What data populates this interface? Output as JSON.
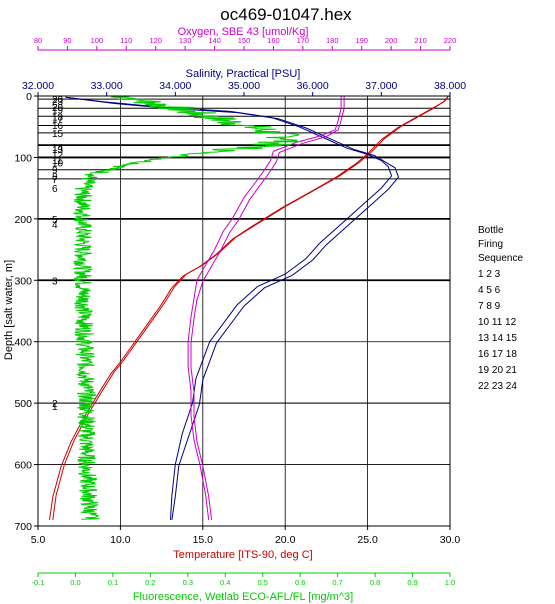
{
  "chart_data": {
    "type": "line",
    "title": "oc469-01047.hex",
    "y_axis": {
      "label": "Depth [salt water, m]",
      "range": [
        0,
        700
      ],
      "ticks": [
        0,
        100,
        200,
        300,
        400,
        500,
        600,
        700
      ],
      "inverted": true
    },
    "x_axes": {
      "oxygen": {
        "label": "Oxygen, SBE 43 [umol/Kg]",
        "range": [
          80,
          220
        ],
        "ticks": [
          80,
          90,
          100,
          110,
          120,
          130,
          140,
          150,
          160,
          170,
          180,
          190,
          200,
          210,
          220
        ],
        "color": "#cc00cc"
      },
      "salinity": {
        "label": "Salinity, Practical [PSU]",
        "range": [
          32,
          38
        ],
        "ticks": [
          "32.000",
          "33.000",
          "34.000",
          "35.000",
          "36.000",
          "37.000",
          "38.000"
        ],
        "color": "#000080"
      },
      "temperature": {
        "label": "Temperature [ITS-90, deg C]",
        "range": [
          5,
          30
        ],
        "ticks": [
          "5.0",
          "10.0",
          "15.0",
          "20.0",
          "25.0",
          "30.0"
        ],
        "color": "#cc0000"
      },
      "fluorescence": {
        "label": "Fluorescence, Wetlab ECO-AFL/FL [mg/m^3]",
        "range": [
          -0.1,
          1.0
        ],
        "ticks": [
          "-0.1",
          "0.0",
          "0.1",
          "0.2",
          "0.3",
          "0.4",
          "0.5",
          "0.6",
          "0.7",
          "0.8",
          "0.9",
          "1.0"
        ],
        "color": "#00cc00"
      }
    },
    "grid": true,
    "series": [
      {
        "key": "temperature",
        "color": "#cc0000",
        "axis": "temperature",
        "points": [
          [
            29.9,
            0
          ],
          [
            29.7,
            8
          ],
          [
            29.0,
            20
          ],
          [
            28.0,
            35
          ],
          [
            27.0,
            50
          ],
          [
            26.0,
            70
          ],
          [
            25.2,
            92
          ],
          [
            24.5,
            108
          ],
          [
            23.3,
            130
          ],
          [
            22.0,
            150
          ],
          [
            20.0,
            180
          ],
          [
            18.2,
            210
          ],
          [
            17.0,
            230
          ],
          [
            16.0,
            255
          ],
          [
            15.0,
            275
          ],
          [
            14.0,
            290
          ],
          [
            13.3,
            310
          ],
          [
            12.6,
            340
          ],
          [
            11.8,
            370
          ],
          [
            11.0,
            400
          ],
          [
            10.2,
            430
          ],
          [
            9.6,
            450
          ],
          [
            8.9,
            480
          ],
          [
            8.0,
            520
          ],
          [
            7.2,
            560
          ],
          [
            6.6,
            600
          ],
          [
            6.1,
            650
          ],
          [
            5.9,
            690
          ]
        ]
      },
      {
        "key": "temperature_up",
        "color": "#cc0000",
        "axis": "temperature",
        "points": [
          [
            29.9,
            0
          ],
          [
            29.6,
            10
          ],
          [
            28.8,
            22
          ],
          [
            27.8,
            37
          ],
          [
            26.8,
            52
          ],
          [
            25.8,
            72
          ],
          [
            25.0,
            94
          ],
          [
            24.3,
            110
          ],
          [
            23.1,
            132
          ],
          [
            21.8,
            152
          ],
          [
            19.8,
            182
          ],
          [
            18.0,
            212
          ],
          [
            16.8,
            233
          ],
          [
            15.8,
            258
          ],
          [
            14.8,
            278
          ],
          [
            13.8,
            293
          ],
          [
            13.1,
            313
          ],
          [
            12.4,
            343
          ],
          [
            11.6,
            373
          ],
          [
            10.8,
            403
          ],
          [
            10.0,
            433
          ],
          [
            9.4,
            453
          ],
          [
            8.7,
            483
          ],
          [
            7.8,
            523
          ],
          [
            7.0,
            563
          ],
          [
            6.4,
            603
          ],
          [
            5.9,
            653
          ],
          [
            5.7,
            690
          ]
        ]
      },
      {
        "key": "salinity",
        "color": "#000080",
        "axis": "salinity",
        "points": [
          [
            32.4,
            2
          ],
          [
            33.0,
            10
          ],
          [
            33.8,
            18
          ],
          [
            34.8,
            25
          ],
          [
            35.4,
            35
          ],
          [
            35.8,
            50
          ],
          [
            36.2,
            70
          ],
          [
            36.5,
            85
          ],
          [
            36.8,
            95
          ],
          [
            37.0,
            105
          ],
          [
            37.1,
            115
          ],
          [
            37.15,
            130
          ],
          [
            37.0,
            150
          ],
          [
            36.8,
            170
          ],
          [
            36.5,
            200
          ],
          [
            36.1,
            240
          ],
          [
            35.9,
            265
          ],
          [
            35.6,
            290
          ],
          [
            35.2,
            310
          ],
          [
            34.9,
            340
          ],
          [
            34.7,
            370
          ],
          [
            34.5,
            400
          ],
          [
            34.4,
            430
          ],
          [
            34.3,
            460
          ],
          [
            34.25,
            500
          ],
          [
            34.1,
            550
          ],
          [
            34.0,
            600
          ],
          [
            33.95,
            650
          ],
          [
            33.93,
            690
          ]
        ]
      },
      {
        "key": "salinity_up",
        "color": "#000080",
        "axis": "salinity",
        "points": [
          [
            32.4,
            2
          ],
          [
            33.1,
            12
          ],
          [
            33.9,
            20
          ],
          [
            34.9,
            27
          ],
          [
            35.5,
            37
          ],
          [
            35.9,
            52
          ],
          [
            36.3,
            72
          ],
          [
            36.6,
            87
          ],
          [
            36.9,
            97
          ],
          [
            37.05,
            107
          ],
          [
            37.2,
            117
          ],
          [
            37.25,
            132
          ],
          [
            37.1,
            152
          ],
          [
            36.9,
            172
          ],
          [
            36.6,
            202
          ],
          [
            36.2,
            242
          ],
          [
            36.0,
            267
          ],
          [
            35.7,
            292
          ],
          [
            35.3,
            312
          ],
          [
            35.0,
            342
          ],
          [
            34.8,
            372
          ],
          [
            34.6,
            402
          ],
          [
            34.5,
            432
          ],
          [
            34.4,
            462
          ],
          [
            34.35,
            502
          ],
          [
            34.2,
            552
          ],
          [
            34.05,
            602
          ],
          [
            34.0,
            652
          ],
          [
            33.95,
            690
          ]
        ]
      },
      {
        "key": "oxygen",
        "color": "#cc00cc",
        "axis": "oxygen",
        "points": [
          [
            183,
            0
          ],
          [
            183,
            20
          ],
          [
            182,
            40
          ],
          [
            181,
            55
          ],
          [
            176,
            65
          ],
          [
            168,
            75
          ],
          [
            160,
            90
          ],
          [
            159,
            105
          ],
          [
            157,
            120
          ],
          [
            154,
            140
          ],
          [
            150,
            165
          ],
          [
            146,
            200
          ],
          [
            143,
            220
          ],
          [
            140,
            250
          ],
          [
            137,
            275
          ],
          [
            134,
            300
          ],
          [
            133,
            330
          ],
          [
            132,
            360
          ],
          [
            131,
            400
          ],
          [
            131,
            440
          ],
          [
            132,
            480
          ],
          [
            132,
            520
          ],
          [
            133,
            560
          ],
          [
            135,
            600
          ],
          [
            137,
            650
          ],
          [
            138,
            690
          ]
        ]
      },
      {
        "key": "oxygen_up",
        "color": "#cc00cc",
        "axis": "oxygen",
        "points": [
          [
            184,
            0
          ],
          [
            184,
            20
          ],
          [
            183,
            40
          ],
          [
            182,
            55
          ],
          [
            178,
            66
          ],
          [
            170,
            77
          ],
          [
            162,
            92
          ],
          [
            161,
            107
          ],
          [
            159,
            122
          ],
          [
            156,
            142
          ],
          [
            152,
            168
          ],
          [
            148,
            203
          ],
          [
            145,
            223
          ],
          [
            142,
            252
          ],
          [
            139,
            277
          ],
          [
            136,
            302
          ],
          [
            134,
            332
          ],
          [
            133,
            362
          ],
          [
            132,
            402
          ],
          [
            132,
            442
          ],
          [
            133,
            482
          ],
          [
            133,
            522
          ],
          [
            134,
            562
          ],
          [
            136,
            602
          ],
          [
            138,
            652
          ],
          [
            139,
            690
          ]
        ]
      },
      {
        "key": "fluorescence",
        "color": "#00cc00",
        "axis": "fluorescence",
        "points": [
          [
            0.13,
            0
          ],
          [
            0.2,
            10
          ],
          [
            0.3,
            25
          ],
          [
            0.4,
            40
          ],
          [
            0.5,
            55
          ],
          [
            0.58,
            70
          ],
          [
            0.5,
            82
          ],
          [
            0.35,
            92
          ],
          [
            0.2,
            105
          ],
          [
            0.1,
            118
          ],
          [
            0.04,
            130
          ],
          [
            0.02,
            150
          ],
          [
            0.02,
            200
          ],
          [
            0.02,
            300
          ],
          [
            0.025,
            400
          ],
          [
            0.03,
            500
          ],
          [
            0.03,
            600
          ],
          [
            0.04,
            690
          ]
        ]
      }
    ],
    "bottles": [
      {
        "label": "20",
        "depth": 5
      },
      {
        "label": "23",
        "depth": 8
      },
      {
        "label": "20",
        "depth": 18
      },
      {
        "label": "19",
        "depth": 22
      },
      {
        "label": "18",
        "depth": 33
      },
      {
        "label": "17",
        "depth": 37
      },
      {
        "label": "16",
        "depth": 47
      },
      {
        "label": "15",
        "depth": 60
      },
      {
        "label": "14",
        "depth": 83
      },
      {
        "label": "13",
        "depth": 86
      },
      {
        "label": "12",
        "depth": 95
      },
      {
        "label": "11",
        "depth": 104
      },
      {
        "label": "10",
        "depth": 108
      },
      {
        "label": "9",
        "depth": 120
      },
      {
        "label": "8",
        "depth": 130
      },
      {
        "label": "7",
        "depth": 135
      },
      {
        "label": "6",
        "depth": 150
      },
      {
        "label": "5",
        "depth": 200
      },
      {
        "label": "4",
        "depth": 208
      },
      {
        "label": "3",
        "depth": 300
      },
      {
        "label": "2",
        "depth": 500
      },
      {
        "label": "1",
        "depth": 505
      }
    ],
    "bottle_lines": [
      5,
      20,
      33,
      48,
      60,
      80,
      100,
      120,
      135,
      200,
      300,
      500
    ],
    "legend": {
      "heading": [
        "Bottle",
        "Firing",
        "Sequence"
      ],
      "rows": [
        "1  2  3",
        "4  5  6",
        "7  8  9",
        "10 11 12",
        "13 14 15",
        "16 17 18",
        "19 20 21",
        "22 23 24"
      ]
    }
  }
}
